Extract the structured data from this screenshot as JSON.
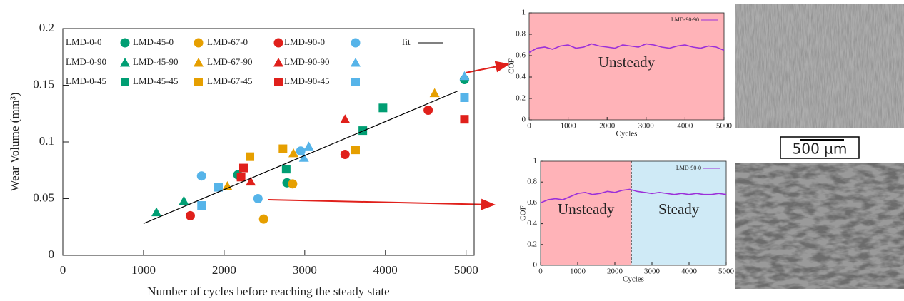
{
  "chart_data": [
    {
      "type": "scatter",
      "xlabel": "Number of cycles before reaching the steady state",
      "ylabel": "Wear Volume (mm³)",
      "xlim": [
        0,
        5100
      ],
      "ylim": [
        0,
        0.2
      ],
      "xticks": [
        0,
        1000,
        2000,
        3000,
        4000,
        5000
      ],
      "yticks": [
        0,
        0.05,
        0.1,
        0.15,
        0.2
      ],
      "series": [
        {
          "name": "LMD-0-0",
          "color": "#009e73",
          "marker": "circle",
          "x": [
            2170,
            2780,
            4980
          ],
          "values": [
            0.071,
            0.064,
            0.155
          ]
        },
        {
          "name": "LMD-45-0",
          "color": "#e69f00",
          "marker": "circle",
          "x": [
            2850,
            2490
          ],
          "values": [
            0.063,
            0.032
          ]
        },
        {
          "name": "LMD-67-0",
          "color": "#e0201b",
          "marker": "circle",
          "x": [
            1580,
            3500,
            4530
          ],
          "values": [
            0.035,
            0.089,
            0.128
          ]
        },
        {
          "name": "LMD-90-0",
          "color": "#56b4e9",
          "marker": "circle",
          "x": [
            1720,
            2420,
            2950
          ],
          "values": [
            0.07,
            0.05,
            0.092
          ]
        },
        {
          "name": "LMD-0-90",
          "color": "#009e73",
          "marker": "triangle",
          "x": [
            1160,
            1500
          ],
          "values": [
            0.038,
            0.048
          ]
        },
        {
          "name": "LMD-45-90",
          "color": "#e69f00",
          "marker": "triangle",
          "x": [
            2040,
            2860,
            4610
          ],
          "values": [
            0.061,
            0.09,
            0.143
          ]
        },
        {
          "name": "LMD-67-90",
          "color": "#e0201b",
          "marker": "triangle",
          "x": [
            2330,
            3500
          ],
          "values": [
            0.065,
            0.12
          ]
        },
        {
          "name": "LMD-90-90",
          "color": "#56b4e9",
          "marker": "triangle",
          "x": [
            2990,
            3050,
            4980
          ],
          "values": [
            0.086,
            0.096,
            0.158
          ]
        },
        {
          "name": "LMD-0-45",
          "color": "#009e73",
          "marker": "square",
          "x": [
            2770,
            3720,
            3970
          ],
          "values": [
            0.076,
            0.11,
            0.13
          ]
        },
        {
          "name": "LMD-45-45",
          "color": "#e69f00",
          "marker": "square",
          "x": [
            2320,
            2730,
            3630
          ],
          "values": [
            0.087,
            0.094,
            0.093
          ]
        },
        {
          "name": "LMD-67-45",
          "color": "#e0201b",
          "marker": "square",
          "x": [
            2240,
            2210,
            4980
          ],
          "values": [
            0.077,
            0.069,
            0.12
          ]
        },
        {
          "name": "LMD-90-45",
          "color": "#56b4e9",
          "marker": "square",
          "x": [
            1720,
            1930,
            4980
          ],
          "values": [
            0.044,
            0.06,
            0.139
          ]
        },
        {
          "name": "fit",
          "color": "#000000",
          "marker": "line",
          "x": [
            1000,
            4900
          ],
          "values": [
            0.028,
            0.145
          ]
        }
      ]
    },
    {
      "type": "line",
      "xlabel": "Cycles",
      "ylabel": "COF",
      "xlim": [
        0,
        5000
      ],
      "ylim": [
        0,
        1
      ],
      "xticks": [
        0,
        1000,
        2000,
        3000,
        4000,
        5000
      ],
      "yticks": [
        0,
        0.2,
        0.4,
        0.6,
        0.8,
        1
      ],
      "regions": [
        {
          "label": "Unsteady",
          "from": 0,
          "to": 5000,
          "color": "#ffb3b8"
        }
      ],
      "series": [
        {
          "name": "LMD-90-90",
          "color": "#9b30d9",
          "x": [
            0,
            200,
            400,
            600,
            800,
            1000,
            1200,
            1400,
            1600,
            1800,
            2000,
            2200,
            2400,
            2600,
            2800,
            3000,
            3200,
            3400,
            3600,
            3800,
            4000,
            4200,
            4400,
            4600,
            4800,
            5000
          ],
          "values": [
            0.63,
            0.67,
            0.68,
            0.66,
            0.69,
            0.7,
            0.67,
            0.68,
            0.71,
            0.69,
            0.68,
            0.67,
            0.7,
            0.69,
            0.68,
            0.71,
            0.7,
            0.68,
            0.67,
            0.69,
            0.7,
            0.68,
            0.67,
            0.69,
            0.68,
            0.65
          ]
        }
      ]
    },
    {
      "type": "line",
      "xlabel": "Cycles",
      "ylabel": "COF",
      "xlim": [
        0,
        5000
      ],
      "ylim": [
        0,
        1
      ],
      "xticks": [
        0,
        1000,
        2000,
        3000,
        4000,
        5000
      ],
      "yticks": [
        0,
        0.2,
        0.4,
        0.6,
        0.8,
        1
      ],
      "regions": [
        {
          "label": "Unsteady",
          "from": 0,
          "to": 2450,
          "color": "#ffb3b8"
        },
        {
          "label": "Steady",
          "from": 2450,
          "to": 5000,
          "color": "#cfeaf6"
        }
      ],
      "series": [
        {
          "name": "LMD-90-0",
          "color": "#9b30d9",
          "x": [
            0,
            200,
            400,
            600,
            800,
            1000,
            1200,
            1400,
            1600,
            1800,
            2000,
            2200,
            2400,
            2600,
            2800,
            3000,
            3200,
            3400,
            3600,
            3800,
            4000,
            4200,
            4400,
            4600,
            4800,
            5000
          ],
          "values": [
            0.6,
            0.63,
            0.64,
            0.63,
            0.66,
            0.69,
            0.7,
            0.68,
            0.69,
            0.71,
            0.7,
            0.72,
            0.73,
            0.71,
            0.7,
            0.69,
            0.7,
            0.69,
            0.68,
            0.69,
            0.68,
            0.69,
            0.68,
            0.68,
            0.69,
            0.68
          ]
        }
      ]
    }
  ],
  "scale_bar": "500 µm"
}
